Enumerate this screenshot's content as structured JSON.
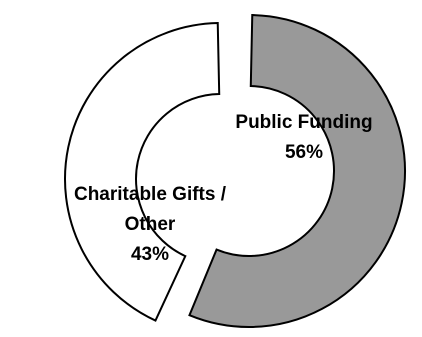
{
  "chart_data": {
    "type": "pie",
    "variant": "exploded-donut",
    "title": "",
    "fragment_text": "f",
    "slices": [
      {
        "name": "Public Funding",
        "value": 56,
        "pct_label": "56%",
        "label_lines": [
          "Public Funding"
        ],
        "color": "#999999"
      },
      {
        "name": "Charitable Gifts / Other",
        "value": 43,
        "pct_label": "43%",
        "label_lines": [
          "Charitable Gifts /",
          "Other"
        ],
        "color": "#ffffff"
      }
    ],
    "stroke_color": "#000000",
    "legend": "none"
  }
}
